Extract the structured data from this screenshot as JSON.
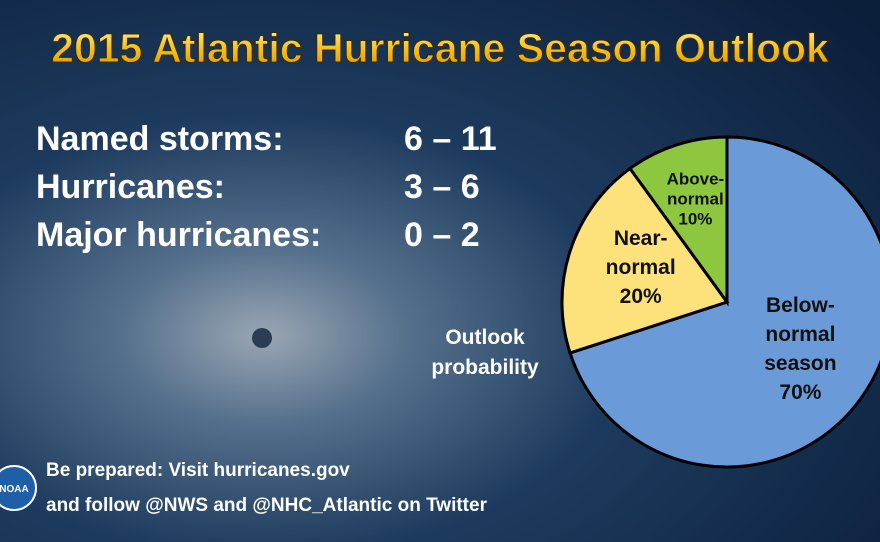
{
  "title": "2015 Atlantic Hurricane Season Outlook",
  "stats": [
    {
      "label": "Named storms:",
      "range": "6 – 11"
    },
    {
      "label": "Hurricanes:",
      "range": "3 – 6"
    },
    {
      "label": "Major hurricanes:",
      "range": "0 – 2"
    }
  ],
  "footer": [
    "Be prepared: Visit hurricanes.gov",
    "and follow @NWS and @NHC_Atlantic on Twitter"
  ],
  "logo": "NOAA",
  "chart_data": {
    "type": "pie",
    "annotation": "Outlook probability",
    "categories": [
      "Below-normal season",
      "Near-normal",
      "Above-normal"
    ],
    "values": [
      70,
      20,
      10
    ],
    "value_labels": [
      "70%",
      "20%",
      "10%"
    ],
    "colors": [
      "#6b9ad9",
      "#fde27c",
      "#8dc63f"
    ]
  }
}
